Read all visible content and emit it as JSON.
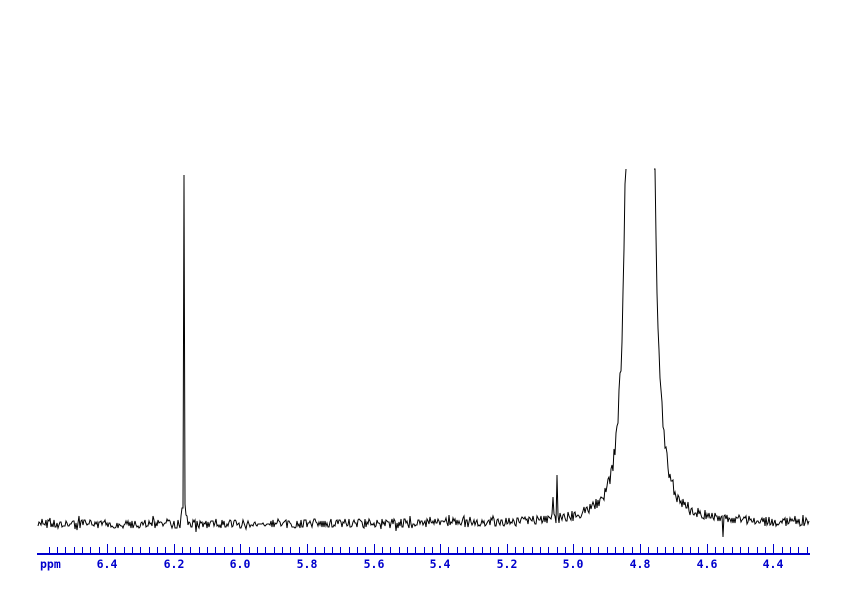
{
  "window": {
    "background": "#ffffff"
  },
  "chart_data": {
    "type": "line",
    "description": "1H NMR spectrum region, horizontal ppm axis only (no y axis shown)",
    "title": "",
    "xlabel": "ppm",
    "ylabel": "",
    "grid": false,
    "legend": false,
    "axis_color": "#0000cd",
    "trace_color": "#000000",
    "background": "#ffffff",
    "x_axis": {
      "unit": "ppm",
      "reversed": true,
      "range": [
        6.61,
        4.29
      ],
      "labeled_ticks": [
        6.4,
        6.2,
        6.0,
        5.8,
        5.6,
        5.4,
        5.2,
        5.0,
        4.8,
        4.6,
        4.4
      ],
      "tick_label_strings": [
        "6.4",
        "6.2",
        "6.0",
        "5.8",
        "5.6",
        "5.4",
        "5.2",
        "5.0",
        "4.8",
        "4.6",
        "4.4"
      ],
      "minor_tick_step": 0.025,
      "minor_tick_start": 6.575
    },
    "y_axis": {
      "shown": false
    },
    "series": [
      {
        "name": "spectrum-trace",
        "color": "#000000",
        "noise_rel_amplitude": 0.0127,
        "peaks": [
          {
            "ppm": 6.17,
            "rel_height": 0.983,
            "shape": "sharp-singlet",
            "clipped": false,
            "needle_halfwidth_ppm": 0.0035,
            "pedestal_rel": 0.056,
            "pedestal_halfwidth_ppm": 0.0084
          },
          {
            "ppm": 5.06,
            "rel_height": 0.051,
            "shape": "noise-spike",
            "clipped": false,
            "needle_halfwidth_ppm": 0.0035
          },
          {
            "ppm": 5.05,
            "rel_height": 0.113,
            "shape": "noise-spike",
            "clipped": false,
            "needle_halfwidth_ppm": 0.0035
          },
          {
            "ppm": 4.8,
            "rel_height": 1.0,
            "shape": "broad-solvent",
            "clipped": true,
            "clip_halfwidth_ppm": 0.044,
            "falloff_exponent": 3.3,
            "base_rel": 0.056,
            "base_halfwidth_ppm": 0.135
          },
          {
            "ppm": 4.65,
            "rel_height": -0.031,
            "shape": "noise-dip",
            "clipped": false,
            "needle_halfwidth_ppm": 0.0035
          },
          {
            "ppm": 4.55,
            "rel_height": -0.062,
            "shape": "noise-dip",
            "clipped": false,
            "needle_halfwidth_ppm": 0.0035
          }
        ]
      }
    ]
  }
}
